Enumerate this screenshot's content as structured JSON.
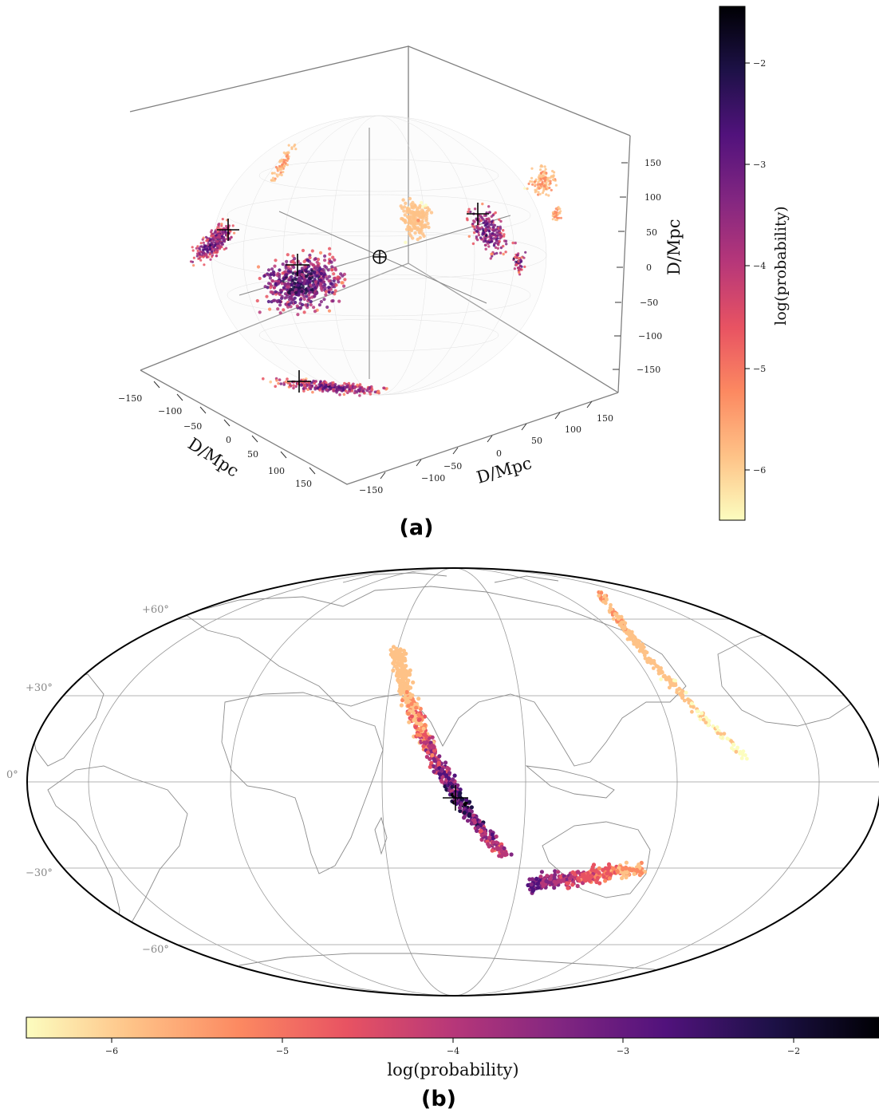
{
  "colormap": [
    "#fcfdbf",
    "#fec287",
    "#fc8961",
    "#e85362",
    "#b73779",
    "#822681",
    "#51127c",
    "#1d1147",
    "#000004"
  ],
  "chart_data": [
    {
      "panel": "(a)",
      "type": "scatter",
      "title": "",
      "axes": {
        "x": {
          "label": "D/Mpc",
          "ticks": [
            -150,
            -100,
            -50,
            0,
            50,
            100,
            150
          ]
        },
        "y": {
          "label": "D/Mpc",
          "ticks": [
            -150,
            -100,
            -50,
            0,
            50,
            100,
            150
          ]
        },
        "z": {
          "label": "D/Mpc",
          "ticks": [
            -150,
            -100,
            -50,
            0,
            50,
            100,
            150
          ]
        },
        "range": [
          -180,
          180
        ]
      },
      "observer_marker": "earth-symbol",
      "colorbar": {
        "label": "log(probability)",
        "ticks": [
          -6,
          -5,
          -4,
          -3,
          -2
        ],
        "range": [
          -6.5,
          -1.5
        ]
      },
      "clusters_log_prob": [
        {
          "region": "upper-left arc",
          "log_prob_range": [
            -6.5,
            -5.0
          ]
        },
        {
          "region": "left lobe",
          "log_prob_range": [
            -6.0,
            -2.0
          ]
        },
        {
          "region": "central lobe",
          "log_prob_range": [
            -6.0,
            -1.5
          ]
        },
        {
          "region": "center-right cluster",
          "log_prob_range": [
            -6.5,
            -5.5
          ]
        },
        {
          "region": "right lobe",
          "log_prob_range": [
            -6.0,
            -2.0
          ]
        },
        {
          "region": "far-right cluster",
          "log_prob_range": [
            -6.5,
            -5.0
          ]
        },
        {
          "region": "floor projection",
          "log_prob_range": [
            -6.5,
            -2.0
          ]
        }
      ]
    },
    {
      "panel": "(b)",
      "type": "scatter",
      "projection": "Mollweide",
      "title": "",
      "lat_labels": [
        "+60°",
        "+30°",
        "0°",
        "−30°",
        "−60°"
      ],
      "colorbar": {
        "label": "log(probability)",
        "ticks": [
          -6,
          -5,
          -4,
          -3,
          -2
        ],
        "range": [
          -6.5,
          -1.5
        ]
      },
      "arcs": [
        {
          "name": "main arc",
          "lat_start": 25,
          "lat_end": -37,
          "log_prob_range": [
            -6.0,
            -1.5
          ]
        },
        {
          "name": "southern patch",
          "lat_range": [
            -28,
            -43
          ],
          "log_prob_range": [
            -6.0,
            -2.5
          ]
        },
        {
          "name": "pacific arc",
          "lat_start": 63,
          "lat_end": 10,
          "log_prob_range": [
            -6.5,
            -5.3
          ]
        }
      ]
    }
  ],
  "panel_a": {
    "label": "(a)",
    "colorbar_label": "log(probability)",
    "cb_ticks": [
      "−2",
      "−3",
      "−4",
      "−5",
      "−6"
    ],
    "z_ticks": [
      "150",
      "100",
      "50",
      "0",
      "−50",
      "−100",
      "−150"
    ],
    "x_ticks": [
      "−150",
      "−100",
      "−50",
      "0",
      "50",
      "100",
      "150"
    ],
    "y_ticks": [
      "−150",
      "−100",
      "−50",
      "0",
      "50",
      "100",
      "150"
    ],
    "x_label": "D/Mpc",
    "y_label": "D/Mpc",
    "z_label": "D/Mpc"
  },
  "panel_b": {
    "label": "(b)",
    "colorbar_label": "log(probability)",
    "cb_ticks": [
      "−6",
      "−5",
      "−4",
      "−3",
      "−2"
    ],
    "lat_labels": [
      "+60°",
      "+30°",
      "0°",
      "−30°",
      "−60°"
    ]
  }
}
